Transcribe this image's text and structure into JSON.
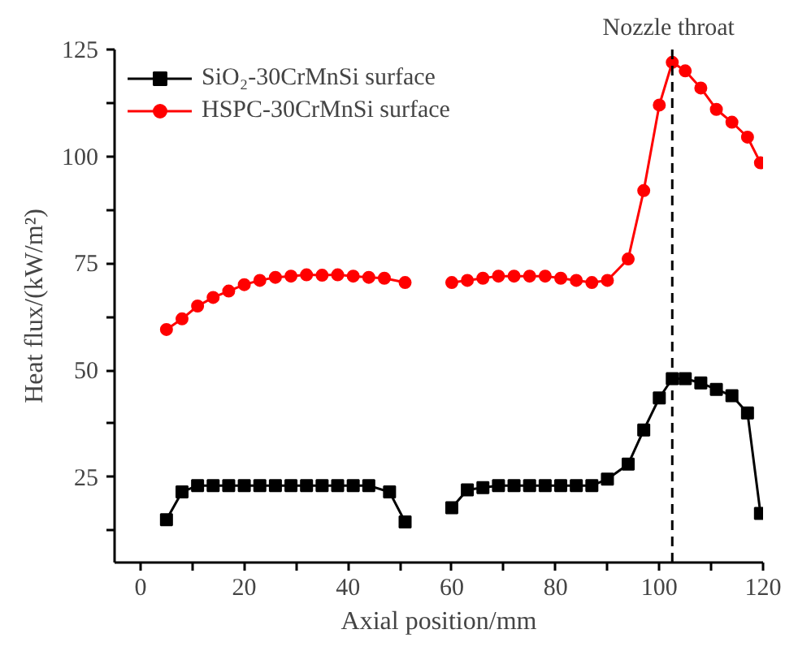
{
  "chart_data": {
    "type": "line",
    "xlabel": "Axial position/mm",
    "ylabel": "Heat flux/(kW/m²)",
    "xlim": [
      -5,
      120
    ],
    "ylim": [
      5,
      125
    ],
    "xticks": [
      0,
      {
        "value": 10,
        "label": null
      },
      20,
      {
        "value": 30,
        "label": null
      },
      40,
      {
        "value": 50,
        "label": null
      },
      60,
      {
        "value": 70,
        "label": null
      },
      80,
      {
        "value": 90,
        "label": null
      },
      100,
      {
        "value": 110,
        "label": null
      },
      120
    ],
    "yticks": [
      {
        "value": 12.5,
        "label": null
      },
      25,
      {
        "value": 37.5,
        "label": null
      },
      50,
      {
        "value": 62.5,
        "label": null
      },
      75,
      {
        "value": 87.5,
        "label": null
      },
      100,
      {
        "value": 112.5,
        "label": null
      },
      125
    ],
    "grid": false,
    "legend": "top left",
    "line_style": "solid",
    "series": [
      {
        "name": "SiO₂-30CrMnSi surface",
        "color": "#000000",
        "marker": "square",
        "x": [
          5,
          8,
          11,
          14,
          17,
          20,
          23,
          26,
          29,
          32,
          35,
          38,
          41,
          44,
          48,
          51,
          55,
          60,
          63,
          66,
          69,
          72,
          75,
          78,
          81,
          84,
          87,
          90,
          94,
          97,
          100,
          102.5,
          105,
          108,
          111,
          114,
          117,
          119.5
        ],
        "values": [
          15,
          21.5,
          23,
          23,
          23,
          23,
          23,
          23,
          23,
          23,
          23,
          23,
          23,
          23,
          21.5,
          14.5,
          null,
          17.8,
          22,
          22.5,
          23,
          23,
          23,
          23,
          23,
          23,
          23,
          24.5,
          28,
          36,
          43.5,
          48,
          48,
          47,
          45.5,
          44,
          40,
          16.5
        ]
      },
      {
        "name": "HSPC-30CrMnSi surface",
        "color": "#ff0000",
        "marker": "circle",
        "x": [
          5,
          8,
          11,
          14,
          17,
          20,
          23,
          26,
          29,
          32,
          35,
          38,
          41,
          44,
          47,
          51,
          55,
          60,
          63,
          66,
          69,
          72,
          75,
          78,
          81,
          84,
          87,
          90,
          94,
          97,
          100,
          102.5,
          105,
          108,
          111,
          114,
          117,
          119.5
        ],
        "values": [
          59.5,
          62,
          65,
          67,
          68.5,
          70,
          71,
          71.7,
          72,
          72.3,
          72.2,
          72.3,
          72,
          71.7,
          71.5,
          70.5,
          null,
          70.5,
          71,
          71.5,
          72,
          72,
          72,
          72,
          71.5,
          71,
          70.5,
          71,
          76,
          92,
          112,
          122,
          120,
          116,
          111,
          108,
          104.5,
          98.5
        ]
      }
    ],
    "ref_lines": [
      {
        "axis": "x",
        "value": 102.5,
        "label": "Nozzle throat",
        "color": "#000000",
        "line_style": "dashed"
      }
    ]
  }
}
